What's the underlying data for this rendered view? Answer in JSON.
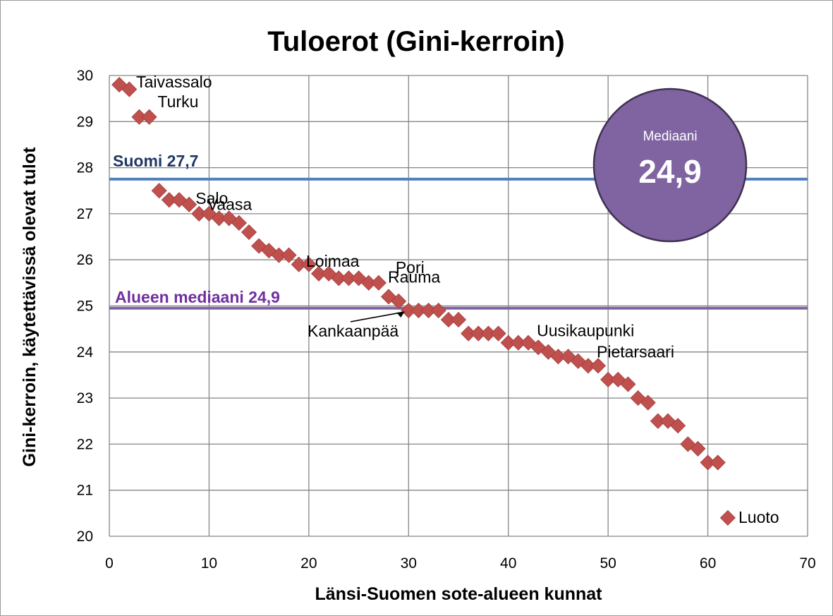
{
  "chart_data": {
    "type": "scatter",
    "title": "Tuloerot (Gini-kerroin)",
    "xlabel": "Länsi-Suomen sote-alueen kunnat",
    "ylabel": "Gini-kerroin, käytettävissä olevat tulot",
    "xlim": [
      0,
      70
    ],
    "ylim": [
      20,
      30
    ],
    "xticks": [
      0,
      10,
      20,
      30,
      40,
      50,
      60,
      70
    ],
    "yticks": [
      20,
      21,
      22,
      23,
      24,
      25,
      26,
      27,
      28,
      29,
      30
    ],
    "grid": true,
    "marker_color": "#c0504d",
    "points": [
      {
        "x": 1,
        "y": 29.8
      },
      {
        "x": 2,
        "y": 29.7
      },
      {
        "x": 3,
        "y": 29.1
      },
      {
        "x": 4,
        "y": 29.1
      },
      {
        "x": 5,
        "y": 27.5
      },
      {
        "x": 6,
        "y": 27.3
      },
      {
        "x": 7,
        "y": 27.3
      },
      {
        "x": 8,
        "y": 27.2
      },
      {
        "x": 9,
        "y": 27.0
      },
      {
        "x": 10,
        "y": 27.0
      },
      {
        "x": 11,
        "y": 26.9
      },
      {
        "x": 12,
        "y": 26.9
      },
      {
        "x": 13,
        "y": 26.8
      },
      {
        "x": 14,
        "y": 26.6
      },
      {
        "x": 15,
        "y": 26.3
      },
      {
        "x": 16,
        "y": 26.2
      },
      {
        "x": 17,
        "y": 26.1
      },
      {
        "x": 18,
        "y": 26.1
      },
      {
        "x": 19,
        "y": 25.9
      },
      {
        "x": 20,
        "y": 25.9
      },
      {
        "x": 21,
        "y": 25.7
      },
      {
        "x": 22,
        "y": 25.7
      },
      {
        "x": 23,
        "y": 25.6
      },
      {
        "x": 24,
        "y": 25.6
      },
      {
        "x": 25,
        "y": 25.6
      },
      {
        "x": 26,
        "y": 25.5
      },
      {
        "x": 27,
        "y": 25.5
      },
      {
        "x": 28,
        "y": 25.2
      },
      {
        "x": 29,
        "y": 25.1
      },
      {
        "x": 30,
        "y": 24.9
      },
      {
        "x": 31,
        "y": 24.9
      },
      {
        "x": 32,
        "y": 24.9
      },
      {
        "x": 33,
        "y": 24.9
      },
      {
        "x": 34,
        "y": 24.7
      },
      {
        "x": 35,
        "y": 24.7
      },
      {
        "x": 36,
        "y": 24.4
      },
      {
        "x": 37,
        "y": 24.4
      },
      {
        "x": 38,
        "y": 24.4
      },
      {
        "x": 39,
        "y": 24.4
      },
      {
        "x": 40,
        "y": 24.2
      },
      {
        "x": 41,
        "y": 24.2
      },
      {
        "x": 42,
        "y": 24.2
      },
      {
        "x": 43,
        "y": 24.1
      },
      {
        "x": 44,
        "y": 24.0
      },
      {
        "x": 45,
        "y": 23.9
      },
      {
        "x": 46,
        "y": 23.9
      },
      {
        "x": 47,
        "y": 23.8
      },
      {
        "x": 48,
        "y": 23.7
      },
      {
        "x": 49,
        "y": 23.7
      },
      {
        "x": 50,
        "y": 23.4
      },
      {
        "x": 51,
        "y": 23.4
      },
      {
        "x": 52,
        "y": 23.3
      },
      {
        "x": 53,
        "y": 23.0
      },
      {
        "x": 54,
        "y": 22.9
      },
      {
        "x": 55,
        "y": 22.5
      },
      {
        "x": 56,
        "y": 22.5
      },
      {
        "x": 57,
        "y": 22.4
      },
      {
        "x": 58,
        "y": 22.0
      },
      {
        "x": 59,
        "y": 21.9
      },
      {
        "x": 60,
        "y": 21.6
      },
      {
        "x": 61,
        "y": 21.6
      },
      {
        "x": 62,
        "y": 20.4
      }
    ],
    "point_labels": [
      {
        "text": "Taivassalo",
        "x": 1,
        "y": 29.8
      },
      {
        "text": "Turku",
        "x": 3,
        "y": 29.1
      },
      {
        "text": "Salo",
        "x": 9,
        "y": 27.0
      },
      {
        "text": "Vaasa",
        "x": 12,
        "y": 26.9
      },
      {
        "text": "Loimaa",
        "x": 21,
        "y": 25.7
      },
      {
        "text": "Pori",
        "x": 27,
        "y": 25.5
      },
      {
        "text": "Rauma",
        "x": 28,
        "y": 25.2
      },
      {
        "text": "Kankaanpää",
        "x": 30,
        "y": 24.9
      },
      {
        "text": "Uusikaupunki",
        "x": 43,
        "y": 24.1
      },
      {
        "text": "Pietarsaari",
        "x": 49,
        "y": 23.7
      },
      {
        "text": "Luoto",
        "x": 62,
        "y": 20.4
      }
    ],
    "reference_lines": [
      {
        "label": "Suomi 27,7",
        "y": 27.75,
        "color": "#4f81bd",
        "label_color": "#1f3864"
      },
      {
        "label": "Alueen mediaani 24,9",
        "y": 24.95,
        "color": "#8064a2",
        "label_color": "#7030a0"
      }
    ],
    "callout": {
      "label": "Mediaani",
      "value": "24,9",
      "fill": "#8064a2",
      "stroke": "#3f3151"
    }
  }
}
